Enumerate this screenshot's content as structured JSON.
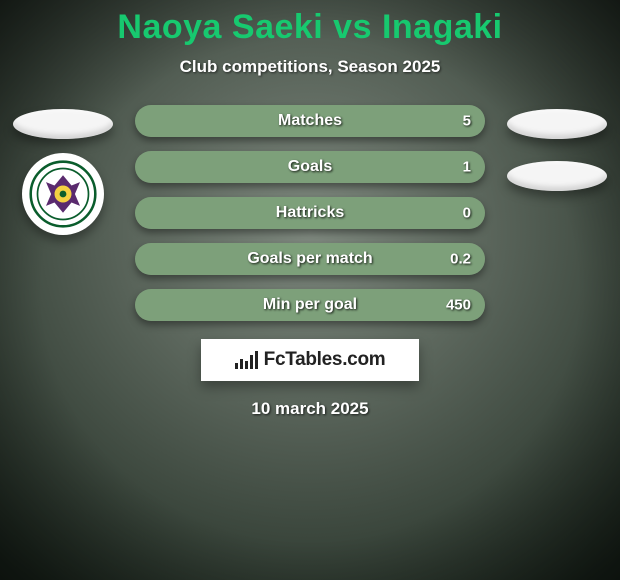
{
  "title": "Naoya Saeki vs Inagaki",
  "title_color": "#17c96f",
  "subtitle": "Club competitions, Season 2025",
  "date": "10 march 2025",
  "background": {
    "top_color": "#2a3a2e",
    "bottom_color": "#808a80",
    "vignette_color": "rgba(0,0,0,0.55)"
  },
  "players": {
    "left": {
      "name": "Naoya Saeki",
      "show_club_badge": true,
      "club_badge_label": "Tokyo Verdy"
    },
    "right": {
      "name": "Inagaki",
      "show_club_badge": false
    }
  },
  "stat_style": {
    "left_color": "#3b7a3a",
    "right_color": "#7da07a",
    "pill_height": 32,
    "label_fontsize": 16,
    "value_fontsize": 15,
    "text_color": "#ffffff"
  },
  "stats": [
    {
      "label": "Matches",
      "left_value": "",
      "right_value": "5",
      "left_pct": 0,
      "right_pct": 100
    },
    {
      "label": "Goals",
      "left_value": "",
      "right_value": "1",
      "left_pct": 0,
      "right_pct": 100
    },
    {
      "label": "Hattricks",
      "left_value": "",
      "right_value": "0",
      "left_pct": 0,
      "right_pct": 100
    },
    {
      "label": "Goals per match",
      "left_value": "",
      "right_value": "0.2",
      "left_pct": 0,
      "right_pct": 100
    },
    {
      "label": "Min per goal",
      "left_value": "",
      "right_value": "450",
      "left_pct": 0,
      "right_pct": 100
    }
  ],
  "brand": {
    "name": "FcTables.com",
    "icon": "bar-chart"
  }
}
